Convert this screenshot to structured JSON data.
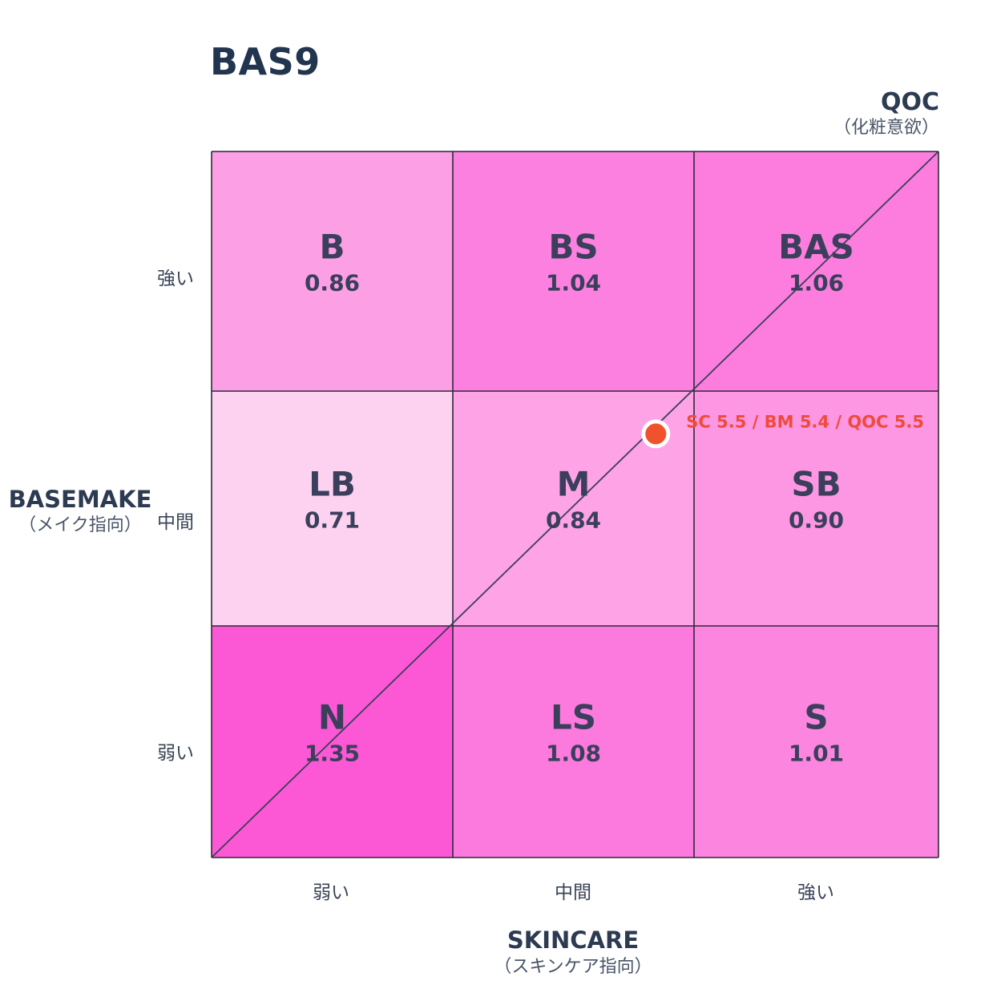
{
  "chart_data": {
    "type": "heatmap",
    "title": "BAS9",
    "xlabel": "SKINCARE",
    "xlabel_sub": "（スキンケア指向）",
    "ylabel": "BASEMAKE",
    "ylabel_sub": "（メイク指向）",
    "diag_label": "QOC",
    "diag_label_sub": "（化粧意欲）",
    "x_ticks": [
      "弱い",
      "中間",
      "強い"
    ],
    "y_ticks_top_to_bottom": [
      "強い",
      "中間",
      "弱い"
    ],
    "cells": [
      {
        "code": "B",
        "value": "0.86",
        "row": 0,
        "col": 0
      },
      {
        "code": "BS",
        "value": "1.04",
        "row": 0,
        "col": 1
      },
      {
        "code": "BAS",
        "value": "1.06",
        "row": 0,
        "col": 2
      },
      {
        "code": "LB",
        "value": "0.71",
        "row": 1,
        "col": 0
      },
      {
        "code": "M",
        "value": "0.84",
        "row": 1,
        "col": 1
      },
      {
        "code": "SB",
        "value": "0.90",
        "row": 1,
        "col": 2
      },
      {
        "code": "N",
        "value": "1.35",
        "row": 2,
        "col": 0
      },
      {
        "code": "LS",
        "value": "1.08",
        "row": 2,
        "col": 1
      },
      {
        "code": "S",
        "value": "1.01",
        "row": 2,
        "col": 2
      }
    ],
    "color_low": "#fdd2f0",
    "color_high": "#fc58d6",
    "point": {
      "sc": 5.5,
      "bm": 5.4,
      "qoc": 5.5,
      "label": "SC 5.5 / BM 5.4 / QOC 5.5",
      "color": "#f0522d"
    },
    "axis_range": [
      0,
      9
    ]
  }
}
